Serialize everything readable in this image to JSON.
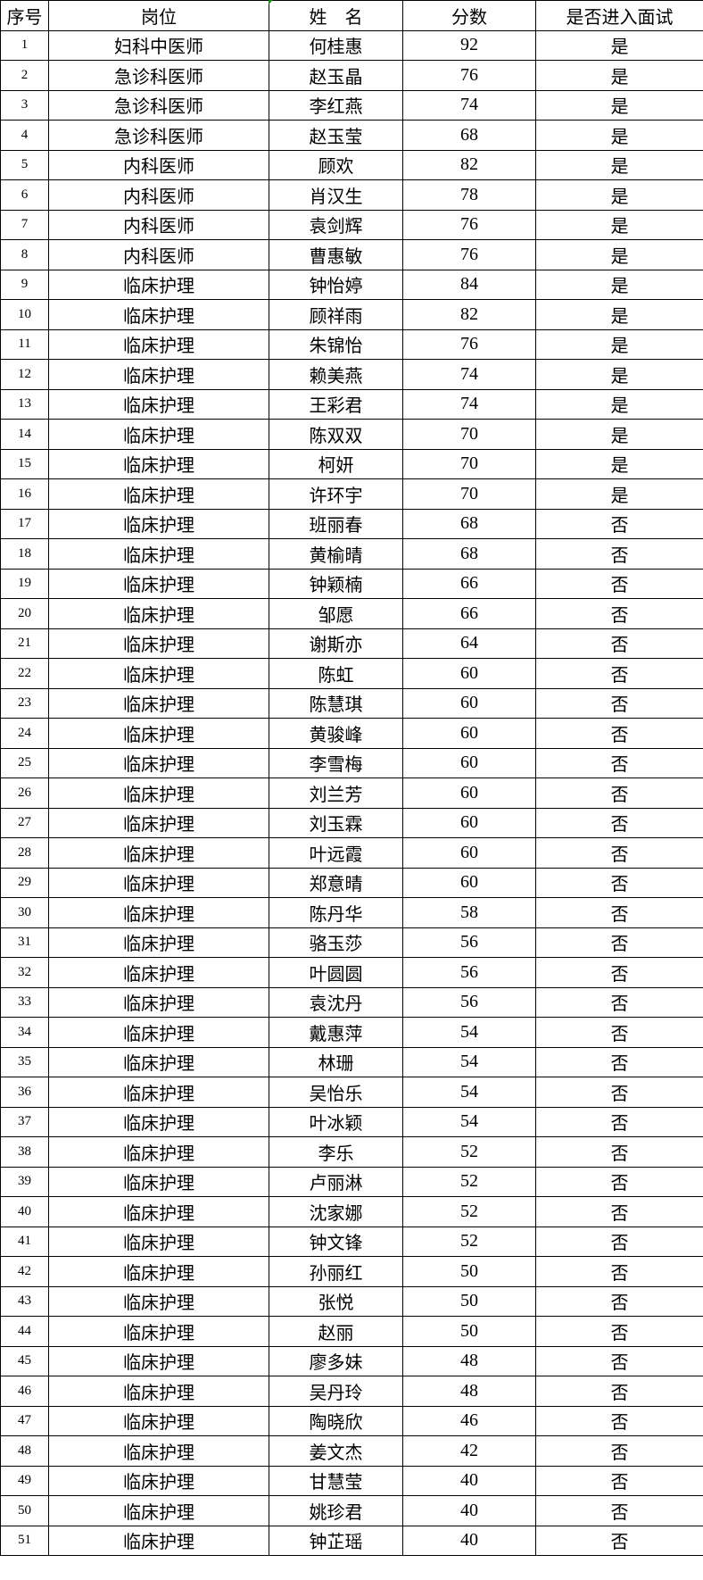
{
  "headers": [
    "序号",
    "岗位",
    "姓　名",
    "分数",
    "是否进入面试"
  ],
  "rows": [
    [
      "1",
      "妇科中医师",
      "何桂惠",
      "92",
      "是"
    ],
    [
      "2",
      "急诊科医师",
      "赵玉晶",
      "76",
      "是"
    ],
    [
      "3",
      "急诊科医师",
      "李红燕",
      "74",
      "是"
    ],
    [
      "4",
      "急诊科医师",
      "赵玉莹",
      "68",
      "是"
    ],
    [
      "5",
      "内科医师",
      "顾欢",
      "82",
      "是"
    ],
    [
      "6",
      "内科医师",
      "肖汉生",
      "78",
      "是"
    ],
    [
      "7",
      "内科医师",
      "袁剑辉",
      "76",
      "是"
    ],
    [
      "8",
      "内科医师",
      "曹惠敏",
      "76",
      "是"
    ],
    [
      "9",
      "临床护理",
      "钟怡婷",
      "84",
      "是"
    ],
    [
      "10",
      "临床护理",
      "顾祥雨",
      "82",
      "是"
    ],
    [
      "11",
      "临床护理",
      "朱锦怡",
      "76",
      "是"
    ],
    [
      "12",
      "临床护理",
      "赖美燕",
      "74",
      "是"
    ],
    [
      "13",
      "临床护理",
      "王彩君",
      "74",
      "是"
    ],
    [
      "14",
      "临床护理",
      "陈双双",
      "70",
      "是"
    ],
    [
      "15",
      "临床护理",
      "柯妍",
      "70",
      "是"
    ],
    [
      "16",
      "临床护理",
      "许环宇",
      "70",
      "是"
    ],
    [
      "17",
      "临床护理",
      "班丽春",
      "68",
      "否"
    ],
    [
      "18",
      "临床护理",
      "黄榆晴",
      "68",
      "否"
    ],
    [
      "19",
      "临床护理",
      "钟颖楠",
      "66",
      "否"
    ],
    [
      "20",
      "临床护理",
      "邹愿",
      "66",
      "否"
    ],
    [
      "21",
      "临床护理",
      "谢斯亦",
      "64",
      "否"
    ],
    [
      "22",
      "临床护理",
      "陈虹",
      "60",
      "否"
    ],
    [
      "23",
      "临床护理",
      "陈慧琪",
      "60",
      "否"
    ],
    [
      "24",
      "临床护理",
      "黄骏峰",
      "60",
      "否"
    ],
    [
      "25",
      "临床护理",
      "李雪梅",
      "60",
      "否"
    ],
    [
      "26",
      "临床护理",
      "刘兰芳",
      "60",
      "否"
    ],
    [
      "27",
      "临床护理",
      "刘玉霖",
      "60",
      "否"
    ],
    [
      "28",
      "临床护理",
      "叶远霞",
      "60",
      "否"
    ],
    [
      "29",
      "临床护理",
      "郑意晴",
      "60",
      "否"
    ],
    [
      "30",
      "临床护理",
      "陈丹华",
      "58",
      "否"
    ],
    [
      "31",
      "临床护理",
      "骆玉莎",
      "56",
      "否"
    ],
    [
      "32",
      "临床护理",
      "叶圆圆",
      "56",
      "否"
    ],
    [
      "33",
      "临床护理",
      "袁沈丹",
      "56",
      "否"
    ],
    [
      "34",
      "临床护理",
      "戴惠萍",
      "54",
      "否"
    ],
    [
      "35",
      "临床护理",
      "林珊",
      "54",
      "否"
    ],
    [
      "36",
      "临床护理",
      "吴怡乐",
      "54",
      "否"
    ],
    [
      "37",
      "临床护理",
      "叶冰颖",
      "54",
      "否"
    ],
    [
      "38",
      "临床护理",
      "李乐",
      "52",
      "否"
    ],
    [
      "39",
      "临床护理",
      "卢丽淋",
      "52",
      "否"
    ],
    [
      "40",
      "临床护理",
      "沈家娜",
      "52",
      "否"
    ],
    [
      "41",
      "临床护理",
      "钟文锋",
      "52",
      "否"
    ],
    [
      "42",
      "临床护理",
      "孙丽红",
      "50",
      "否"
    ],
    [
      "43",
      "临床护理",
      "张悦",
      "50",
      "否"
    ],
    [
      "44",
      "临床护理",
      "赵丽",
      "50",
      "否"
    ],
    [
      "45",
      "临床护理",
      "廖多妹",
      "48",
      "否"
    ],
    [
      "46",
      "临床护理",
      "吴丹玲",
      "48",
      "否"
    ],
    [
      "47",
      "临床护理",
      "陶晓欣",
      "46",
      "否"
    ],
    [
      "48",
      "临床护理",
      "姜文杰",
      "42",
      "否"
    ],
    [
      "49",
      "临床护理",
      "甘慧莹",
      "40",
      "否"
    ],
    [
      "50",
      "临床护理",
      "姚珍君",
      "40",
      "否"
    ],
    [
      "51",
      "临床护理",
      "钟芷瑶",
      "40",
      "否"
    ]
  ]
}
